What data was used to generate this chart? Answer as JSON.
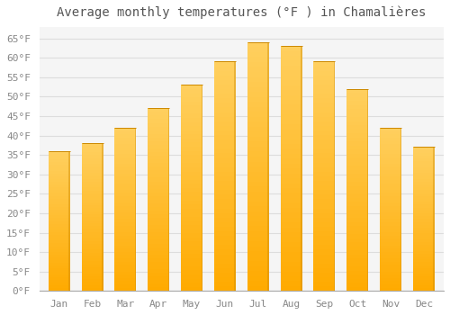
{
  "title": "Average monthly temperatures (°F ) in Chamalières",
  "months": [
    "Jan",
    "Feb",
    "Mar",
    "Apr",
    "May",
    "Jun",
    "Jul",
    "Aug",
    "Sep",
    "Oct",
    "Nov",
    "Dec"
  ],
  "values": [
    36,
    38,
    42,
    47,
    53,
    59,
    64,
    63,
    59,
    52,
    42,
    37
  ],
  "bar_color": "#FFAA00",
  "bar_color_top": "#FFD966",
  "bar_edge_color": "#CC8800",
  "background_color": "#FFFFFF",
  "plot_bg_color": "#F5F5F5",
  "grid_color": "#DDDDDD",
  "ylim": [
    0,
    68
  ],
  "yticks": [
    0,
    5,
    10,
    15,
    20,
    25,
    30,
    35,
    40,
    45,
    50,
    55,
    60,
    65
  ],
  "title_fontsize": 10,
  "tick_fontsize": 8,
  "tick_color": "#888888",
  "title_color": "#555555",
  "font_family": "monospace",
  "bar_width": 0.65
}
